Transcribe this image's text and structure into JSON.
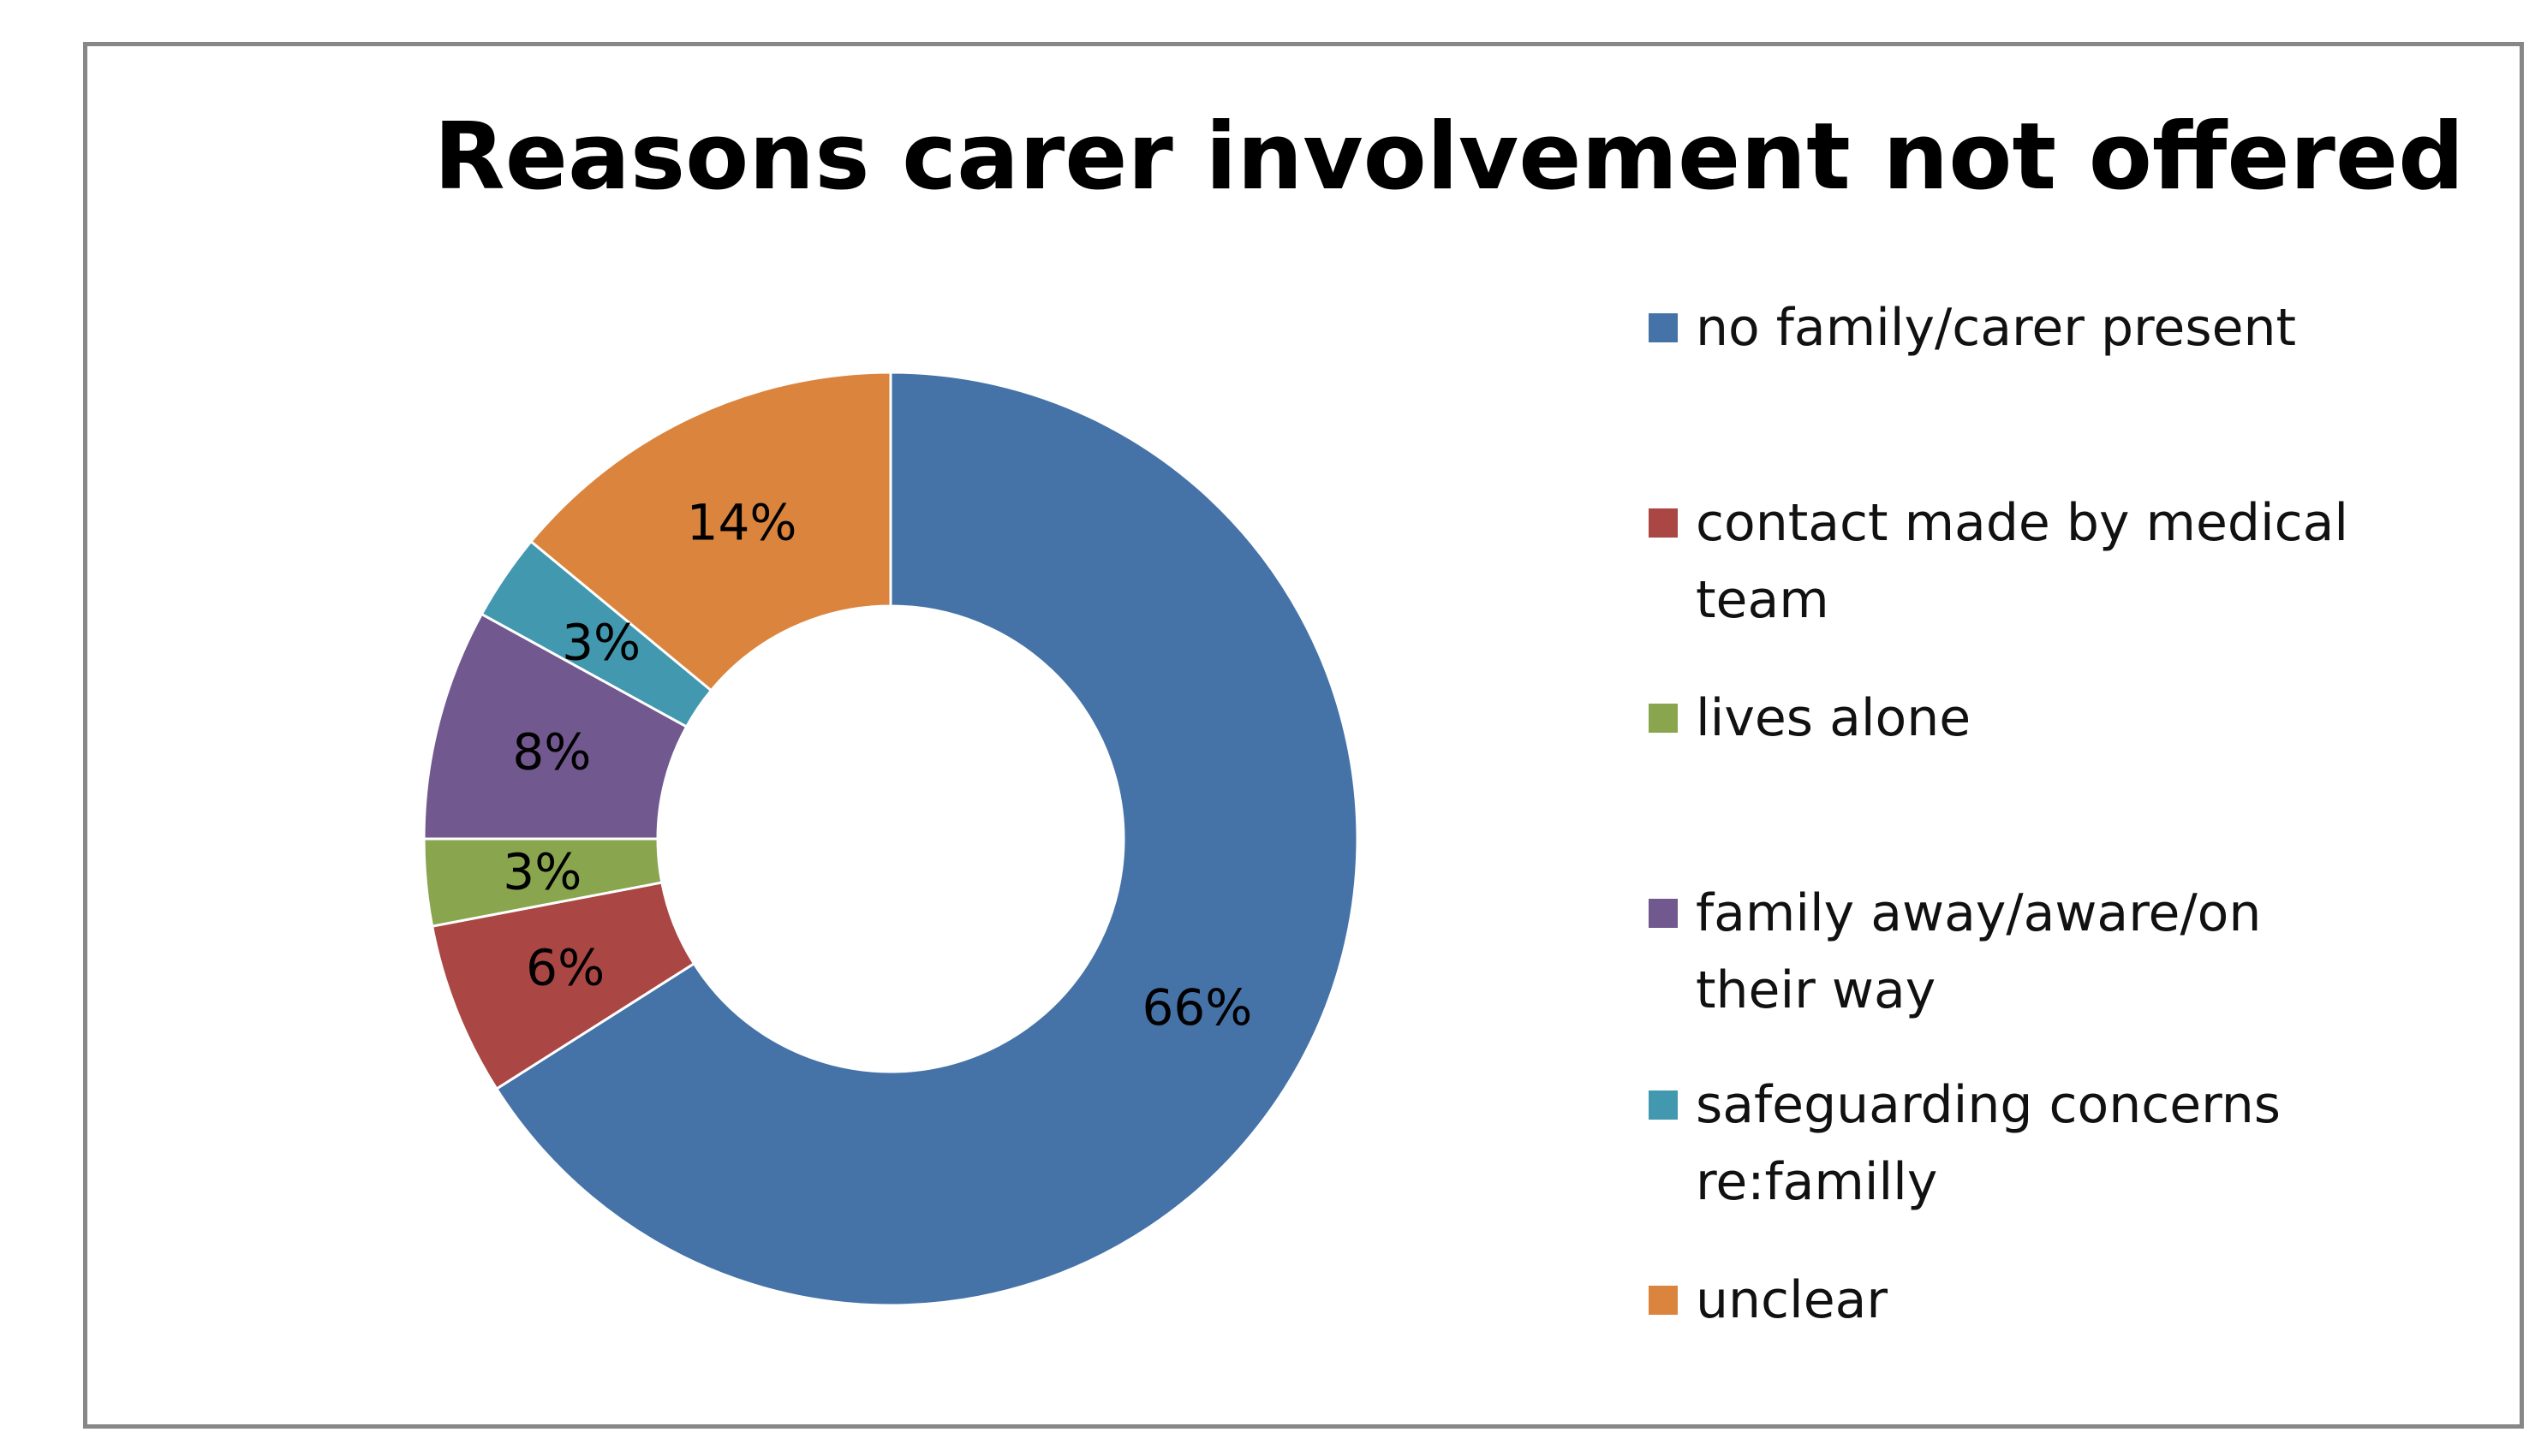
{
  "chart_data": {
    "type": "pie",
    "title": "Reasons carer involvement not offered",
    "donut": true,
    "legend_position": "right",
    "categories": [
      "no family/carer present",
      "contact made by medical team",
      "lives alone",
      "family away/aware/on their way",
      "safeguarding concerns re:familly",
      "unclear"
    ],
    "values": [
      66,
      6,
      3,
      8,
      3,
      14
    ],
    "value_labels": [
      "66%",
      "6%",
      "3%",
      "8%",
      "3%",
      "14%"
    ],
    "colors": [
      "#4573a7",
      "#aa4643",
      "#89a54e",
      "#71588f",
      "#4198af",
      "#db843d"
    ]
  },
  "legend": {
    "items": [
      {
        "line1": "no family/carer present",
        "line2": ""
      },
      {
        "line1": "contact made by medical",
        "line2": "team"
      },
      {
        "line1": "lives alone",
        "line2": ""
      },
      {
        "line1": "family away/aware/on",
        "line2": "their way"
      },
      {
        "line1": "safeguarding concerns",
        "line2": "re:familly"
      },
      {
        "line1": "unclear",
        "line2": ""
      }
    ]
  }
}
